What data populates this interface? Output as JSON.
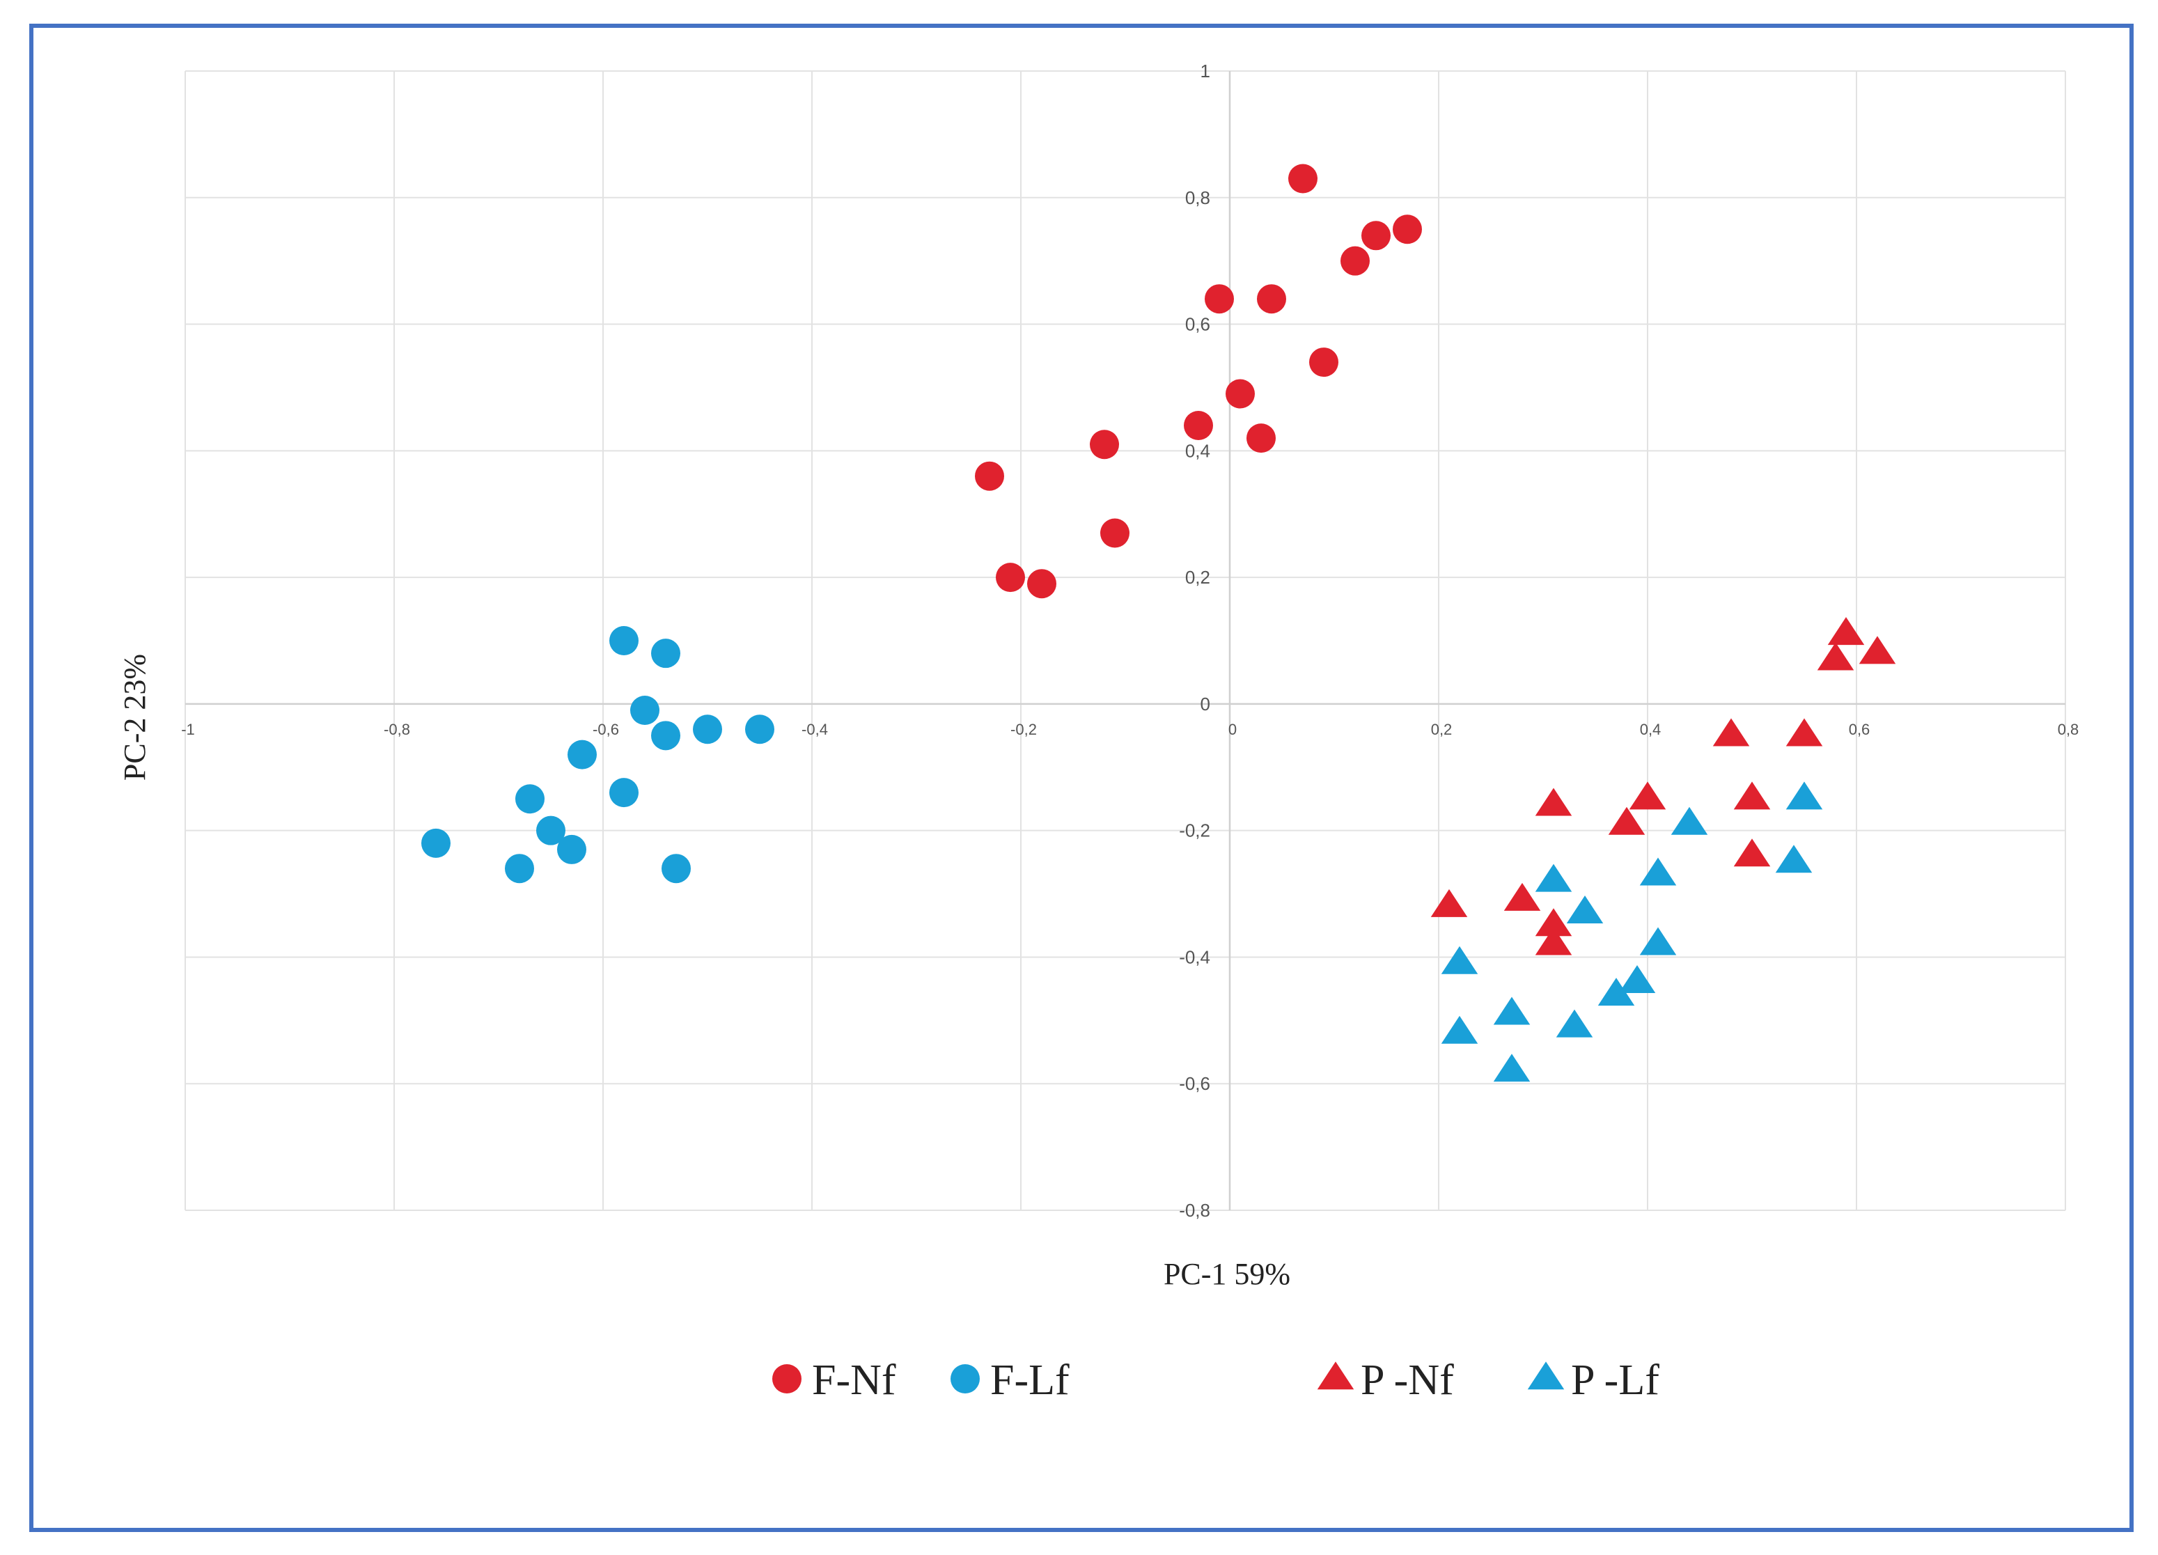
{
  "chart_data": {
    "type": "scatter",
    "title": "",
    "xlabel": "PC-1 59%",
    "ylabel": "PC-2 23%",
    "xlim": [
      -1,
      0.8
    ],
    "ylim": [
      -0.8,
      1
    ],
    "x_ticks": [
      -1,
      -0.8,
      -0.6,
      -0.4,
      -0.2,
      0,
      0.2,
      0.4,
      0.6,
      0.8
    ],
    "x_tick_labels": [
      "-1",
      "-0,8",
      "-0,6",
      "-0,4",
      "-0,2",
      "0",
      "0,2",
      "0,4",
      "0,6",
      "0,8"
    ],
    "y_ticks": [
      1,
      0.8,
      0.6,
      0.4,
      0.2,
      0,
      -0.2,
      -0.4,
      -0.6,
      -0.8
    ],
    "y_tick_labels": [
      "1",
      "0,8",
      "0,6",
      "0,4",
      "0,2",
      "0",
      "-0,2",
      "-0,4",
      "-0,6",
      "-0,8"
    ],
    "grid": true,
    "legend_position": "bottom",
    "series": [
      {
        "name": "F-Nf",
        "marker": "circle",
        "color": "#e0222e",
        "points": [
          [
            0.07,
            0.83
          ],
          [
            0.14,
            0.74
          ],
          [
            0.17,
            0.75
          ],
          [
            0.12,
            0.7
          ],
          [
            -0.01,
            0.64
          ],
          [
            0.04,
            0.64
          ],
          [
            0.09,
            0.54
          ],
          [
            0.01,
            0.49
          ],
          [
            -0.03,
            0.44
          ],
          [
            0.03,
            0.42
          ],
          [
            -0.12,
            0.41
          ],
          [
            -0.23,
            0.36
          ],
          [
            -0.11,
            0.27
          ],
          [
            -0.21,
            0.2
          ],
          [
            -0.18,
            0.19
          ]
        ]
      },
      {
        "name": "F-Lf",
        "marker": "circle",
        "color": "#1aa0d8",
        "points": [
          [
            -0.58,
            0.1
          ],
          [
            -0.54,
            0.08
          ],
          [
            -0.56,
            -0.01
          ],
          [
            -0.54,
            -0.05
          ],
          [
            -0.5,
            -0.04
          ],
          [
            -0.45,
            -0.04
          ],
          [
            -0.62,
            -0.08
          ],
          [
            -0.58,
            -0.14
          ],
          [
            -0.67,
            -0.15
          ],
          [
            -0.65,
            -0.2
          ],
          [
            -0.63,
            -0.23
          ],
          [
            -0.76,
            -0.22
          ],
          [
            -0.68,
            -0.26
          ],
          [
            -0.53,
            -0.26
          ]
        ]
      },
      {
        "name": "P -Nf",
        "marker": "triangle",
        "color": "#e0222e",
        "points": [
          [
            0.59,
            0.11
          ],
          [
            0.62,
            0.08
          ],
          [
            0.58,
            0.07
          ],
          [
            0.48,
            -0.05
          ],
          [
            0.55,
            -0.05
          ],
          [
            0.31,
            -0.16
          ],
          [
            0.4,
            -0.15
          ],
          [
            0.5,
            -0.15
          ],
          [
            0.38,
            -0.19
          ],
          [
            0.5,
            -0.24
          ],
          [
            0.21,
            -0.32
          ],
          [
            0.28,
            -0.31
          ],
          [
            0.31,
            -0.35
          ],
          [
            0.31,
            -0.38
          ]
        ]
      },
      {
        "name": "P -Lf",
        "marker": "triangle",
        "color": "#1aa0d8",
        "points": [
          [
            0.55,
            -0.15
          ],
          [
            0.44,
            -0.19
          ],
          [
            0.54,
            -0.25
          ],
          [
            0.41,
            -0.27
          ],
          [
            0.31,
            -0.28
          ],
          [
            0.34,
            -0.33
          ],
          [
            0.41,
            -0.38
          ],
          [
            0.22,
            -0.41
          ],
          [
            0.39,
            -0.44
          ],
          [
            0.37,
            -0.46
          ],
          [
            0.27,
            -0.49
          ],
          [
            0.22,
            -0.52
          ],
          [
            0.33,
            -0.51
          ],
          [
            0.27,
            -0.58
          ]
        ]
      }
    ]
  }
}
